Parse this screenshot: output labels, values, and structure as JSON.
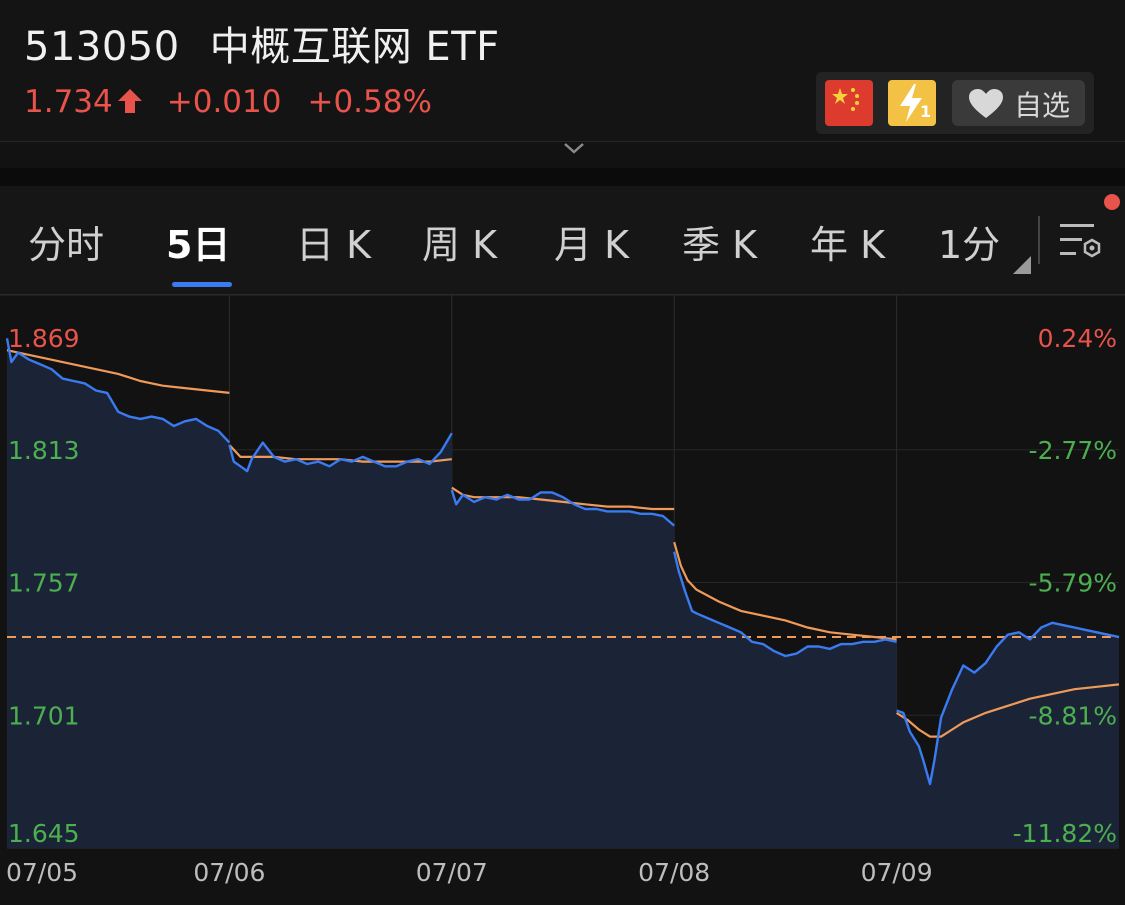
{
  "header": {
    "code": "513050",
    "name": "中概互联网 ETF",
    "price": "1.734",
    "change": "+0.010",
    "change_pct": "+0.58%",
    "watch_label": "自选",
    "badge_bolt_sub": "1"
  },
  "tabs": [
    {
      "label": "分时"
    },
    {
      "label": "5日"
    },
    {
      "label": "日 K"
    },
    {
      "label": "周 K"
    },
    {
      "label": "月 K"
    },
    {
      "label": "季 K"
    },
    {
      "label": "年 K"
    },
    {
      "label": "1分"
    }
  ],
  "active_tab": "5日",
  "colors": {
    "up": "#e8534b",
    "down": "#4caf50",
    "price_line": "#3a7bf2",
    "avg_line": "#f09a5a",
    "accent": "#3a7bf2"
  },
  "chart_data": {
    "type": "line",
    "title": "",
    "xlabel": "",
    "ylabel": "",
    "ylim": [
      1.645,
      1.869
    ],
    "y_ticks_left": [
      "1.869",
      "1.813",
      "1.757",
      "1.701",
      "1.645"
    ],
    "y_ticks_right": [
      "0.24%",
      "-2.77%",
      "-5.79%",
      "-8.81%",
      "-11.82%"
    ],
    "days": [
      "07/05",
      "07/06",
      "07/07",
      "07/08",
      "07/09"
    ],
    "reference_price": 1.734,
    "series": [
      {
        "role": "price",
        "x": [
          0,
          0.02,
          0.05,
          0.1,
          0.15,
          0.2,
          0.25,
          0.3,
          0.35,
          0.4,
          0.45,
          0.5,
          0.55,
          0.6,
          0.65,
          0.7,
          0.75,
          0.8,
          0.85,
          0.9,
          0.95,
          1.0,
          1.0,
          1.02,
          1.05,
          1.08,
          1.1,
          1.15,
          1.2,
          1.25,
          1.3,
          1.35,
          1.4,
          1.45,
          1.5,
          1.55,
          1.6,
          1.65,
          1.7,
          1.75,
          1.8,
          1.85,
          1.9,
          1.95,
          2.0,
          2.0,
          2.02,
          2.05,
          2.1,
          2.15,
          2.2,
          2.25,
          2.3,
          2.35,
          2.4,
          2.45,
          2.5,
          2.55,
          2.6,
          2.65,
          2.7,
          2.75,
          2.8,
          2.85,
          2.9,
          2.95,
          3.0,
          3.0,
          3.02,
          3.05,
          3.08,
          3.1,
          3.15,
          3.2,
          3.25,
          3.3,
          3.35,
          3.4,
          3.45,
          3.5,
          3.55,
          3.6,
          3.65,
          3.7,
          3.75,
          3.8,
          3.85,
          3.9,
          3.95,
          4.0,
          4.0,
          4.03,
          4.06,
          4.1,
          4.12,
          4.15,
          4.17,
          4.2,
          4.25,
          4.3,
          4.35,
          4.4,
          4.45,
          4.5,
          4.55,
          4.6,
          4.65,
          4.7,
          4.75,
          4.8,
          4.85,
          4.9,
          4.95,
          5.0
        ],
        "y": [
          1.86,
          1.85,
          1.854,
          1.851,
          1.849,
          1.847,
          1.843,
          1.842,
          1.841,
          1.838,
          1.837,
          1.829,
          1.827,
          1.826,
          1.827,
          1.826,
          1.823,
          1.825,
          1.826,
          1.823,
          1.821,
          1.816,
          1.815,
          1.808,
          1.806,
          1.804,
          1.809,
          1.816,
          1.81,
          1.808,
          1.809,
          1.807,
          1.808,
          1.806,
          1.809,
          1.808,
          1.81,
          1.808,
          1.806,
          1.806,
          1.808,
          1.809,
          1.807,
          1.812,
          1.82,
          1.796,
          1.79,
          1.794,
          1.791,
          1.793,
          1.792,
          1.794,
          1.792,
          1.792,
          1.795,
          1.795,
          1.793,
          1.79,
          1.788,
          1.788,
          1.787,
          1.787,
          1.787,
          1.786,
          1.786,
          1.785,
          1.781,
          1.77,
          1.762,
          1.753,
          1.745,
          1.744,
          1.742,
          1.74,
          1.738,
          1.736,
          1.732,
          1.731,
          1.728,
          1.726,
          1.727,
          1.73,
          1.73,
          1.729,
          1.731,
          1.731,
          1.732,
          1.732,
          1.733,
          1.732,
          1.703,
          1.702,
          1.694,
          1.688,
          1.682,
          1.672,
          1.682,
          1.7,
          1.712,
          1.722,
          1.719,
          1.723,
          1.73,
          1.735,
          1.736,
          1.733,
          1.738,
          1.74,
          1.739,
          1.738,
          1.737,
          1.736,
          1.735,
          1.734
        ]
      },
      {
        "role": "average",
        "x": [
          0,
          0.05,
          0.1,
          0.2,
          0.3,
          0.4,
          0.5,
          0.6,
          0.7,
          0.8,
          0.9,
          1.0,
          1.0,
          1.05,
          1.1,
          1.2,
          1.3,
          1.4,
          1.5,
          1.6,
          1.7,
          1.8,
          1.9,
          2.0,
          2.0,
          2.05,
          2.1,
          2.2,
          2.3,
          2.4,
          2.5,
          2.6,
          2.7,
          2.8,
          2.9,
          3.0,
          3.0,
          3.03,
          3.06,
          3.1,
          3.2,
          3.3,
          3.4,
          3.5,
          3.6,
          3.7,
          3.8,
          3.9,
          4.0,
          4.0,
          4.05,
          4.1,
          4.15,
          4.2,
          4.25,
          4.3,
          4.4,
          4.5,
          4.6,
          4.7,
          4.8,
          4.9,
          5.0
        ],
        "y": [
          1.855,
          1.854,
          1.853,
          1.851,
          1.849,
          1.847,
          1.845,
          1.842,
          1.84,
          1.839,
          1.838,
          1.837,
          1.815,
          1.81,
          1.81,
          1.81,
          1.809,
          1.809,
          1.809,
          1.808,
          1.808,
          1.808,
          1.808,
          1.809,
          1.797,
          1.794,
          1.793,
          1.793,
          1.793,
          1.792,
          1.791,
          1.79,
          1.789,
          1.789,
          1.788,
          1.788,
          1.774,
          1.764,
          1.758,
          1.754,
          1.749,
          1.745,
          1.743,
          1.741,
          1.738,
          1.736,
          1.735,
          1.734,
          1.733,
          1.702,
          1.699,
          1.695,
          1.692,
          1.692,
          1.695,
          1.698,
          1.702,
          1.705,
          1.708,
          1.71,
          1.712,
          1.713,
          1.714
        ]
      }
    ]
  }
}
